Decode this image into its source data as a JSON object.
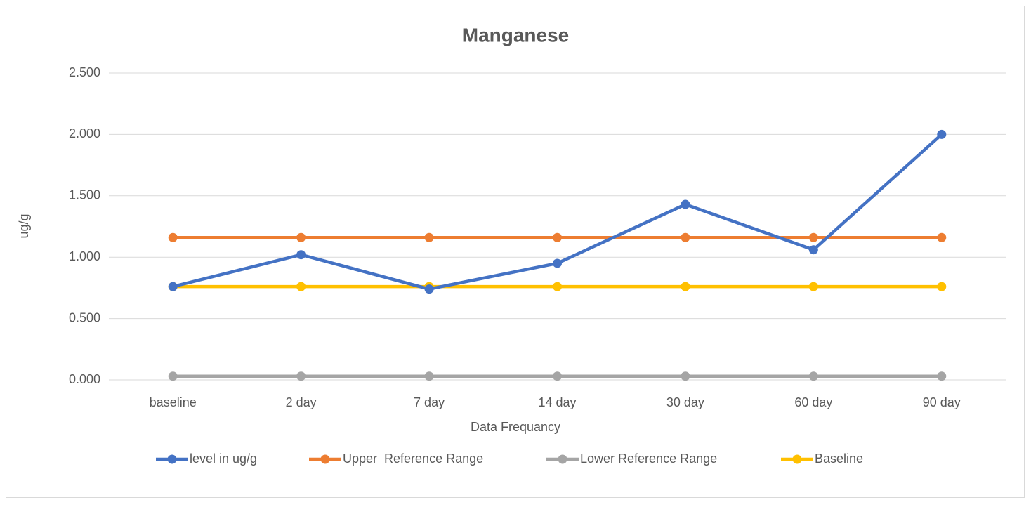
{
  "chart_data": {
    "type": "line",
    "title": "Manganese",
    "x_label": "Data Frequancy",
    "y_label": "ug/g",
    "categories": [
      "baseline",
      "2 day",
      "7 day",
      "14 day",
      "30 day",
      "60 day",
      "90 day"
    ],
    "series": [
      {
        "name": "level in ug/g",
        "color": "#4472c4",
        "values": [
          0.76,
          1.02,
          0.74,
          0.95,
          1.43,
          1.06,
          2.0
        ]
      },
      {
        "name": "Upper  Reference Range",
        "color": "#ed7d31",
        "values": [
          1.16,
          1.16,
          1.16,
          1.16,
          1.16,
          1.16,
          1.16
        ]
      },
      {
        "name": "Lower Reference Range",
        "color": "#a5a5a5",
        "values": [
          0.03,
          0.03,
          0.03,
          0.03,
          0.03,
          0.03,
          0.03
        ]
      },
      {
        "name": "Baseline",
        "color": "#ffc000",
        "values": [
          0.76,
          0.76,
          0.76,
          0.76,
          0.76,
          0.76,
          0.76
        ]
      }
    ],
    "ylim": [
      0,
      2.5
    ],
    "yticks": [
      {
        "value": 0,
        "label": "0.000"
      },
      {
        "value": 0.5,
        "label": "0.500"
      },
      {
        "value": 1,
        "label": "1.000"
      },
      {
        "value": 1.5,
        "label": "1.500"
      },
      {
        "value": 2,
        "label": "2.000"
      },
      {
        "value": 2.5,
        "label": "2.500"
      }
    ],
    "grid": true,
    "legend": "bottom"
  }
}
